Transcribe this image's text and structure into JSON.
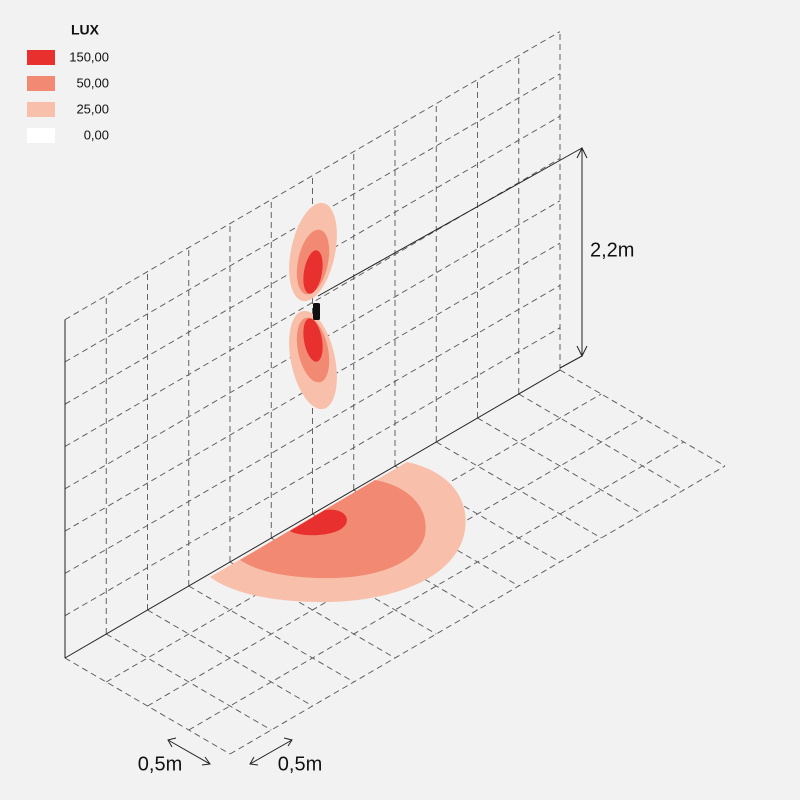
{
  "legend": {
    "title": "LUX",
    "items": [
      {
        "label": "150,00",
        "color": "#e8302f"
      },
      {
        "label": "50,00",
        "color": "#f28a73"
      },
      {
        "label": "25,00",
        "color": "#f8c0ab"
      },
      {
        "label": "0,00",
        "color": "#ffffff"
      }
    ]
  },
  "dimensions": {
    "height": "2,2m",
    "grid_a": "0,5m",
    "grid_b": "0,5m"
  }
}
